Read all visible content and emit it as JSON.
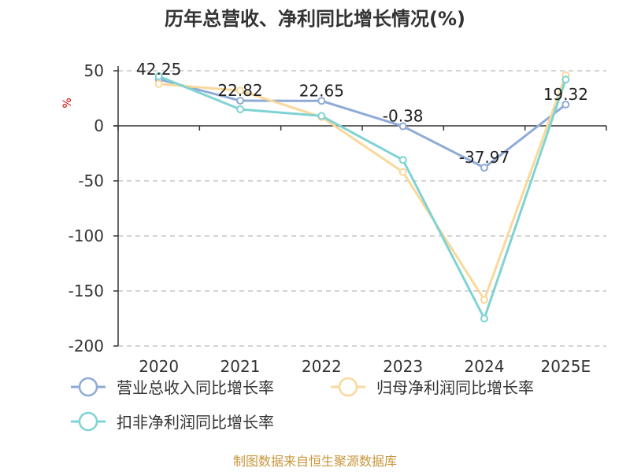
{
  "chart_data": {
    "type": "line",
    "title": "历年总营收、净利同比增长情况(%)",
    "ylabel": "%",
    "categories": [
      "2020",
      "2021",
      "2022",
      "2023",
      "2024",
      "2025E"
    ],
    "ylim": [
      -200,
      50
    ],
    "yticks": [
      50,
      0,
      -50,
      -100,
      -150,
      -200
    ],
    "grid": true,
    "legend_position": "bottom",
    "series": [
      {
        "name": "营业总收入同比增长率",
        "color": "#8eaad6",
        "values": [
          42.25,
          22.82,
          22.65,
          -0.38,
          -37.97,
          19.32
        ],
        "labels": [
          "42.25",
          "22.82",
          "22.65",
          "-0.38",
          "-37.97",
          "19.32"
        ]
      },
      {
        "name": "归母净利润同比增长率",
        "color": "#f9d89b",
        "values": [
          38,
          32,
          8,
          -42,
          -158,
          46
        ],
        "labels": []
      },
      {
        "name": "扣非净利润同比增长率",
        "color": "#7fd3d3",
        "values": [
          45,
          15,
          9,
          -31,
          -175,
          42
        ],
        "labels": []
      }
    ],
    "source": "制图数据来自恒生聚源数据库"
  }
}
